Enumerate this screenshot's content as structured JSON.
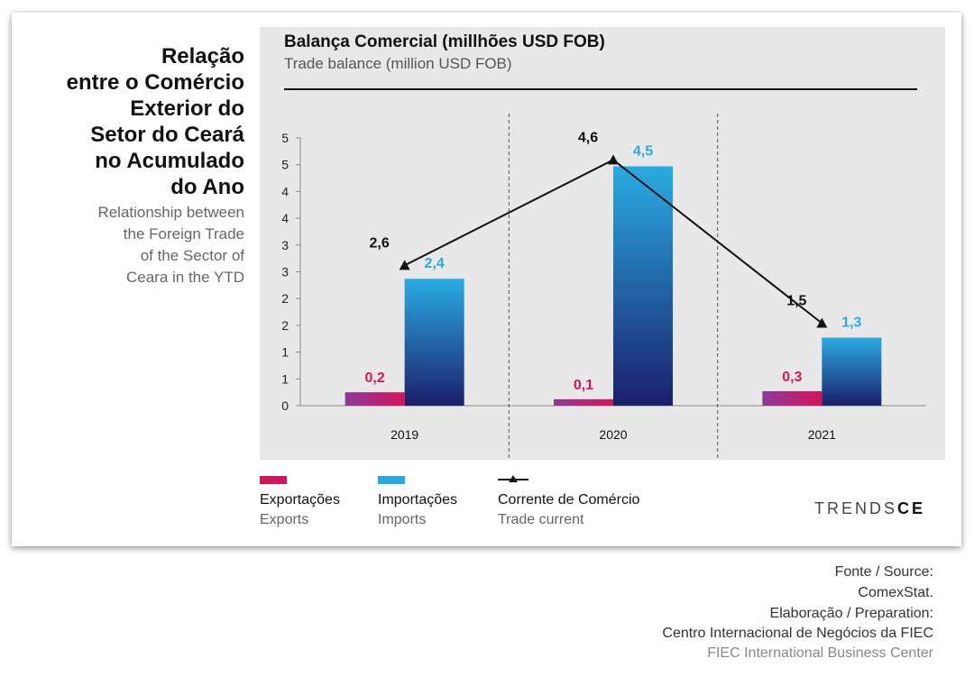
{
  "side": {
    "title_lines": [
      "Relação",
      "entre o Comércio",
      "Exterior do",
      "Setor do Ceará",
      "no Acumulado",
      "do Ano"
    ],
    "subtitle_lines": [
      "Relationship between",
      "the Foreign Trade",
      "of the Sector of",
      "Ceara in the YTD"
    ]
  },
  "colors": {
    "exports": "#d4145a",
    "imports": "#29abe2",
    "imports_dark": "#1b1f6b",
    "exports_dark": "#8e3a9a",
    "line": "#111111"
  },
  "chart_data": {
    "type": "bar",
    "title": "Balança Comercial (millhões USD FOB)",
    "subtitle": "Trade balance (million USD FOB)",
    "categories": [
      "2019",
      "2020",
      "2021"
    ],
    "y_tick_labels": [
      "0",
      "1",
      "1",
      "2",
      "2",
      "3",
      "3",
      "4",
      "4",
      "5",
      "5"
    ],
    "ylim": [
      0,
      5
    ],
    "grid": false,
    "series": [
      {
        "name": "Exportações",
        "name_en": "Exports",
        "kind": "bar",
        "values": [
          0.25,
          0.12,
          0.27
        ],
        "labels": [
          "0,2",
          "0,1",
          "0,3"
        ]
      },
      {
        "name": "Importações",
        "name_en": "Imports",
        "kind": "bar",
        "values": [
          2.37,
          4.47,
          1.27
        ],
        "labels": [
          "2,4",
          "4,5",
          "1,3"
        ]
      },
      {
        "name": "Corrente de Comércio",
        "name_en": "Trade current",
        "kind": "line",
        "values": [
          2.62,
          4.59,
          1.54
        ],
        "labels": [
          "2,6",
          "4,6",
          "1,5"
        ]
      }
    ]
  },
  "legend": [
    {
      "pt": "Exportações",
      "en": "Exports"
    },
    {
      "pt": "Importações",
      "en": "Imports"
    },
    {
      "pt": "Corrente de Comércio",
      "en": "Trade current"
    }
  ],
  "brand": {
    "prefix": "TRENDS",
    "suffix": "CE"
  },
  "source": [
    "Fonte / Source:",
    "ComexStat.",
    "Elaboração / Preparation:",
    "Centro Internacional de Negócios da FIEC",
    "FIEC International Business Center"
  ]
}
